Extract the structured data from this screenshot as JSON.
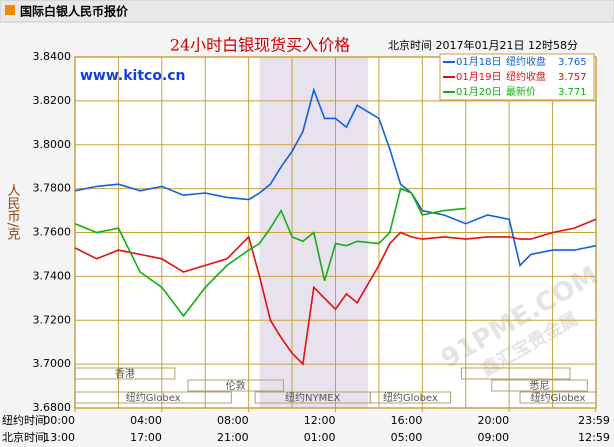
{
  "header": {
    "title": "国际白银人民币报价"
  },
  "chart_data": {
    "type": "line",
    "title": "24小时白银现货买入价格",
    "subtitle": "北京时间  2017年01月21日 12时58分",
    "source": "www.kitco.cn",
    "watermark": [
      "91PME.COM",
      "鑫汇宝贵金属"
    ],
    "y_label": "人民币/克",
    "x_row_labels": [
      "纽约时间",
      "北京时间"
    ],
    "x": [
      0,
      1,
      2,
      3,
      4,
      5,
      6,
      7,
      8,
      8.5,
      9,
      9.5,
      10,
      10.5,
      11,
      11.5,
      12,
      12.5,
      13,
      14,
      14.5,
      15,
      15.5,
      16,
      17,
      18,
      19,
      20,
      20.5,
      21,
      22,
      23,
      24
    ],
    "series": [
      {
        "name": "01月18日",
        "note": "纽约收盘",
        "last": 3.765,
        "color": "#1060e0",
        "values": [
          3.779,
          3.781,
          3.782,
          3.779,
          3.781,
          3.777,
          3.778,
          3.776,
          3.775,
          3.778,
          3.782,
          3.79,
          3.797,
          3.806,
          3.825,
          3.812,
          3.812,
          3.808,
          3.818,
          3.812,
          3.798,
          3.782,
          3.778,
          3.77,
          3.768,
          3.764,
          3.768,
          3.766,
          3.745,
          3.75,
          3.752,
          3.752,
          3.754
        ]
      },
      {
        "name": "01月19日",
        "note": "纽约收盘",
        "last": 3.757,
        "color": "#e01010",
        "values": [
          3.753,
          3.748,
          3.752,
          3.75,
          3.748,
          3.742,
          3.745,
          3.748,
          3.758,
          3.74,
          3.72,
          3.712,
          3.705,
          3.7,
          3.735,
          3.73,
          3.725,
          3.732,
          3.728,
          3.745,
          3.755,
          3.76,
          3.758,
          3.757,
          3.758,
          3.757,
          3.758,
          3.758,
          3.757,
          3.757,
          3.76,
          3.762,
          3.766
        ]
      },
      {
        "name": "01月20日",
        "note": "最新价",
        "last": 3.771,
        "color": "#10b010",
        "values": [
          3.764,
          3.76,
          3.762,
          3.742,
          3.735,
          3.722,
          3.735,
          3.745,
          3.752,
          3.755,
          3.762,
          3.77,
          3.758,
          3.756,
          3.76,
          3.738,
          3.755,
          3.754,
          3.756,
          3.755,
          3.76,
          3.78,
          3.778,
          3.768,
          3.77,
          3.771,
          null,
          null,
          null,
          null,
          null,
          null,
          null
        ]
      }
    ],
    "xlim": [
      0,
      24
    ],
    "xticks": [
      {
        "value": 0,
        "label": "00:00"
      },
      {
        "value": 4,
        "label": "04:00"
      },
      {
        "value": 8,
        "label": "08:00"
      },
      {
        "value": 12,
        "label": "12:00"
      },
      {
        "value": 16,
        "label": "16:00"
      },
      {
        "value": 20,
        "label": "20:00"
      },
      {
        "value": 23.983,
        "label": "23:59"
      }
    ],
    "x2_tick_labels": [
      "13:00",
      "17:00",
      "21:00",
      "01:00",
      "05:00",
      "09:00",
      "12:59"
    ],
    "xgrid": [
      2,
      4,
      6,
      8,
      10,
      12,
      14,
      16,
      18,
      20,
      22
    ],
    "ylim": [
      3.68,
      3.84
    ],
    "yticks": [
      {
        "value": 3.68,
        "label": "3.6800"
      },
      {
        "value": 3.7,
        "label": "3.7000"
      },
      {
        "value": 3.72,
        "label": "3.7200"
      },
      {
        "value": 3.74,
        "label": "3.7400"
      },
      {
        "value": 3.76,
        "label": "3.7600"
      },
      {
        "value": 3.78,
        "label": "3.7800"
      },
      {
        "value": 3.8,
        "label": "3.8000"
      },
      {
        "value": 3.82,
        "label": "3.8200"
      },
      {
        "value": 3.84,
        "label": "3.8400"
      }
    ],
    "grid": true,
    "shaded_range": [
      8.5,
      13.5
    ],
    "market_rows": [
      [
        {
          "name": "香港",
          "range": [
            0,
            4.6
          ]
        },
        {
          "name": "",
          "range": [
            17.8,
            22.8
          ]
        }
      ],
      [
        {
          "name": "伦敦",
          "range": [
            5.2,
            9.6
          ]
        },
        {
          "name": "悉尼",
          "range": [
            19.2,
            23.6
          ]
        }
      ],
      [
        {
          "name": "纽约Globex",
          "range": [
            0,
            7.2
          ]
        },
        {
          "name": "纽约NYMEX",
          "range": [
            8.3,
            13.6
          ]
        },
        {
          "name": "纽约Globex",
          "range": [
            13.6,
            17.3
          ]
        },
        {
          "name": "纽约Globex",
          "range": [
            20.5,
            24
          ]
        }
      ]
    ]
  }
}
